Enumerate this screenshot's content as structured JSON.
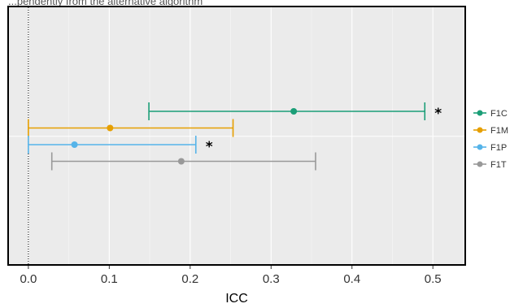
{
  "header_text": "...pendently from the alternative algorithm",
  "chart_data": {
    "type": "scatter",
    "title": "",
    "xlabel": "ICC",
    "ylabel": "",
    "xlim": [
      -0.025,
      0.54
    ],
    "x_ticks": [
      0.0,
      0.1,
      0.2,
      0.3,
      0.4,
      0.5
    ],
    "x_tick_labels": [
      "0.0",
      "0.1",
      "0.2",
      "0.3",
      "0.4",
      "0.5"
    ],
    "grid": true,
    "reference_line": {
      "x": 0,
      "style": "dotted"
    },
    "legend": {
      "placement": "right"
    },
    "series": [
      {
        "name": "F1C",
        "color": "#1b9e77",
        "estimate": 0.328,
        "lower": 0.149,
        "upper": 0.49,
        "annotation": "*"
      },
      {
        "name": "F1M",
        "color": "#e69f00",
        "estimate": 0.101,
        "lower": 0.0,
        "upper": 0.253,
        "annotation": ""
      },
      {
        "name": "F1P",
        "color": "#56b4e9",
        "estimate": 0.057,
        "lower": 0.0,
        "upper": 0.207,
        "annotation": "*"
      },
      {
        "name": "F1T",
        "color": "#999999",
        "estimate": 0.189,
        "lower": 0.029,
        "upper": 0.355,
        "annotation": ""
      }
    ]
  }
}
